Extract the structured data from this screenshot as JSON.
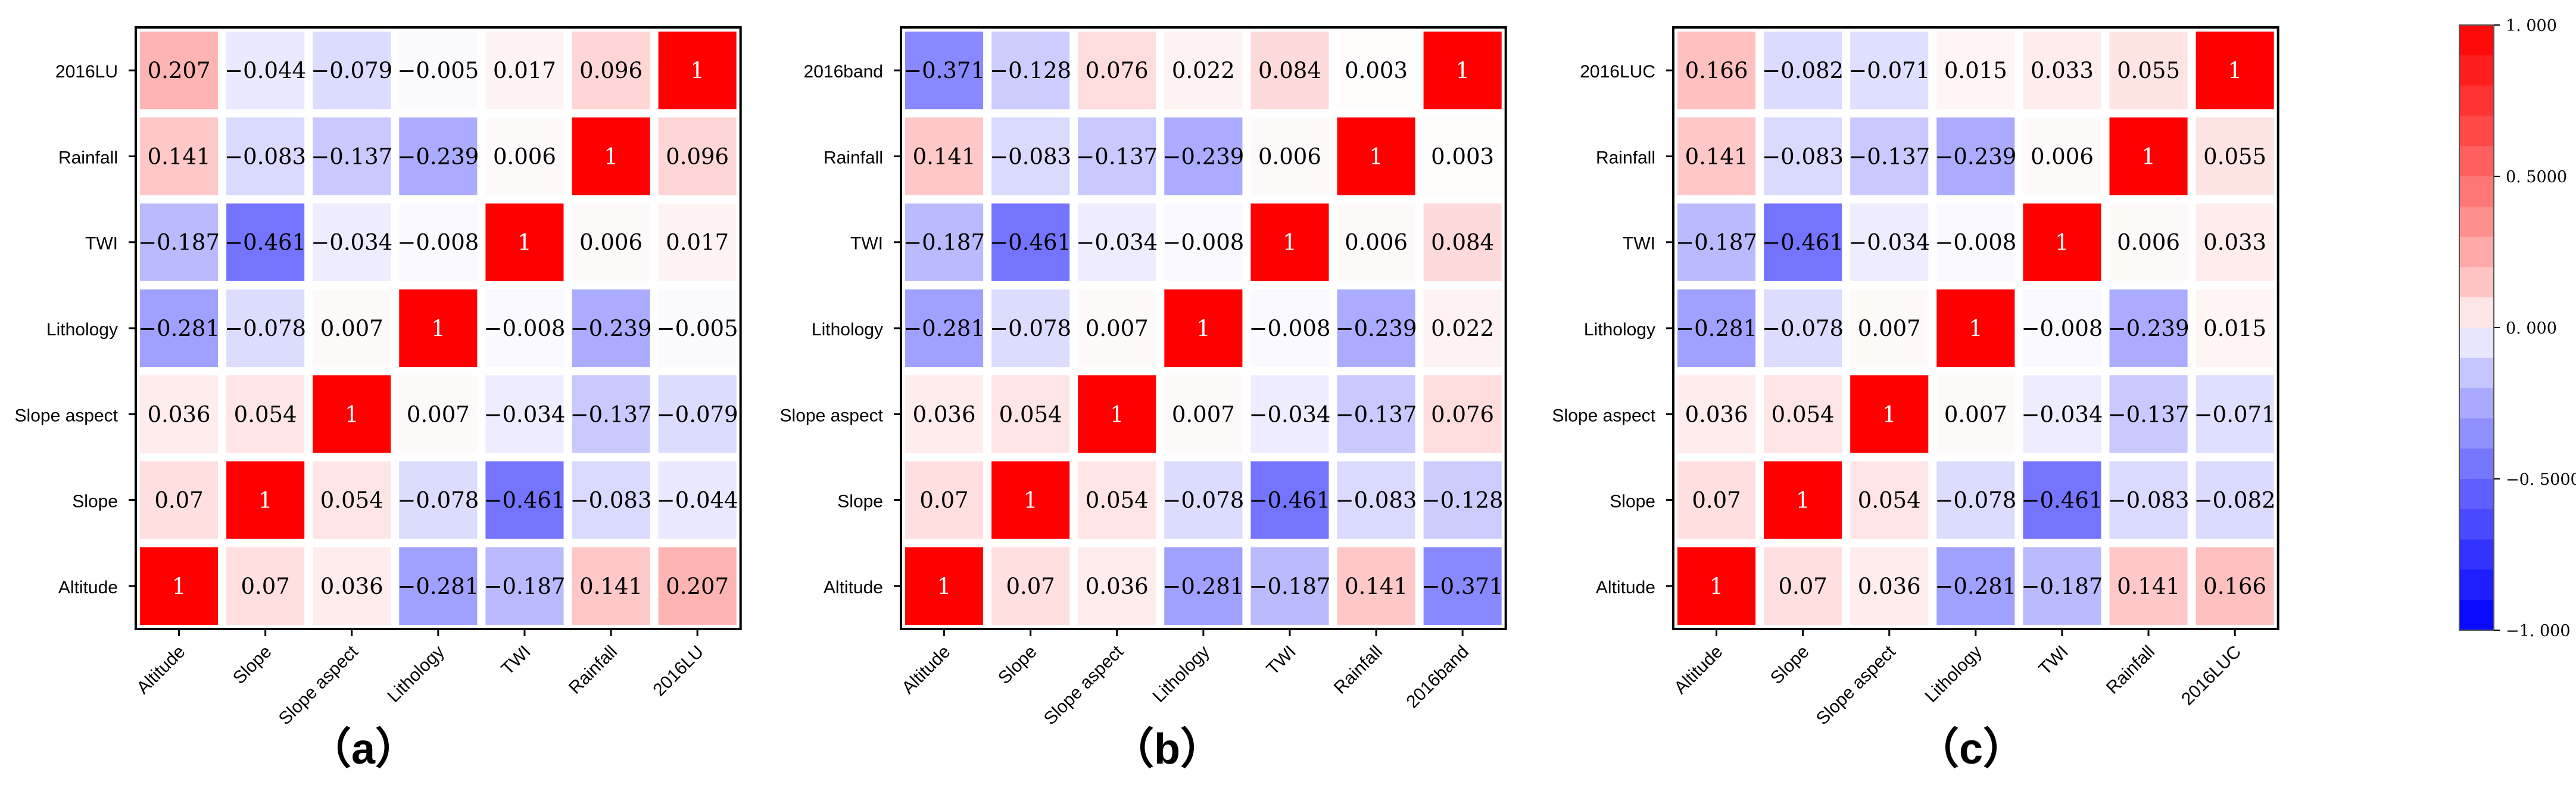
{
  "chart_data": [
    {
      "type": "heatmap",
      "panel_label": "（a）",
      "variables": [
        "Altitude",
        "Slope",
        "Slope aspect",
        "Lithology",
        "TWI",
        "Rainfall",
        "2016LU"
      ],
      "matrix": [
        [
          "1",
          "0.07",
          "0.036",
          "−0.281",
          "−0.187",
          "0.141",
          "0.207"
        ],
        [
          "0.07",
          "1",
          "0.054",
          "−0.078",
          "−0.461",
          "−0.083",
          "−0.044"
        ],
        [
          "0.036",
          "0.054",
          "1",
          "0.007",
          "−0.034",
          "−0.137",
          "−0.079"
        ],
        [
          "−0.281",
          "−0.078",
          "0.007",
          "1",
          "−0.008",
          "−0.239",
          "−0.005"
        ],
        [
          "−0.187",
          "−0.461",
          "−0.034",
          "−0.008",
          "1",
          "0.006",
          "0.017"
        ],
        [
          "0.141",
          "−0.083",
          "−0.137",
          "−0.239",
          "0.006",
          "1",
          "0.096"
        ],
        [
          "0.207",
          "−0.044",
          "−0.079",
          "−0.005",
          "0.017",
          "0.096",
          "1"
        ]
      ]
    },
    {
      "type": "heatmap",
      "panel_label": "（b）",
      "variables": [
        "Altitude",
        "Slope",
        "Slope aspect",
        "Lithology",
        "TWI",
        "Rainfall",
        "2016band"
      ],
      "matrix": [
        [
          "1",
          "0.07",
          "0.036",
          "−0.281",
          "−0.187",
          "0.141",
          "−0.371"
        ],
        [
          "0.07",
          "1",
          "0.054",
          "−0.078",
          "−0.461",
          "−0.083",
          "−0.128"
        ],
        [
          "0.036",
          "0.054",
          "1",
          "0.007",
          "−0.034",
          "−0.137",
          "0.076"
        ],
        [
          "−0.281",
          "−0.078",
          "0.007",
          "1",
          "−0.008",
          "−0.239",
          "0.022"
        ],
        [
          "−0.187",
          "−0.461",
          "−0.034",
          "−0.008",
          "1",
          "0.006",
          "0.084"
        ],
        [
          "0.141",
          "−0.083",
          "−0.137",
          "−0.239",
          "0.006",
          "1",
          "0.003"
        ],
        [
          "−0.371",
          "−0.128",
          "0.076",
          "0.022",
          "0.084",
          "0.003",
          "1"
        ]
      ]
    },
    {
      "type": "heatmap",
      "panel_label": "（c）",
      "variables": [
        "Altitude",
        "Slope",
        "Slope aspect",
        "Lithology",
        "TWI",
        "Rainfall",
        "2016LUC"
      ],
      "matrix": [
        [
          "1",
          "0.07",
          "0.036",
          "−0.281",
          "−0.187",
          "0.141",
          "0.166"
        ],
        [
          "0.07",
          "1",
          "0.054",
          "−0.078",
          "−0.461",
          "−0.083",
          "−0.082"
        ],
        [
          "0.036",
          "0.054",
          "1",
          "0.007",
          "−0.034",
          "−0.137",
          "−0.071"
        ],
        [
          "−0.281",
          "−0.078",
          "0.007",
          "1",
          "−0.008",
          "−0.239",
          "0.015"
        ],
        [
          "−0.187",
          "−0.461",
          "−0.034",
          "−0.008",
          "1",
          "0.006",
          "0.033"
        ],
        [
          "0.141",
          "−0.083",
          "−0.137",
          "−0.239",
          "0.006",
          "1",
          "0.055"
        ],
        [
          "0.166",
          "−0.082",
          "−0.071",
          "0.015",
          "0.033",
          "0.055",
          "1"
        ]
      ]
    }
  ],
  "colorbar": {
    "range": [
      -1,
      1
    ],
    "ticks": [
      {
        "value": 1,
        "label": "1. 000"
      },
      {
        "value": 0.5,
        "label": "0. 5000"
      },
      {
        "value": 0,
        "label": "0. 000"
      },
      {
        "value": -0.5,
        "label": "−0. 5000"
      },
      {
        "value": -1,
        "label": "−1. 000"
      }
    ],
    "steps": 20,
    "colors": {
      "negative": "#0000ff",
      "neutral": "#ffffff",
      "positive": "#ff0000"
    }
  },
  "text_color": "#000000"
}
